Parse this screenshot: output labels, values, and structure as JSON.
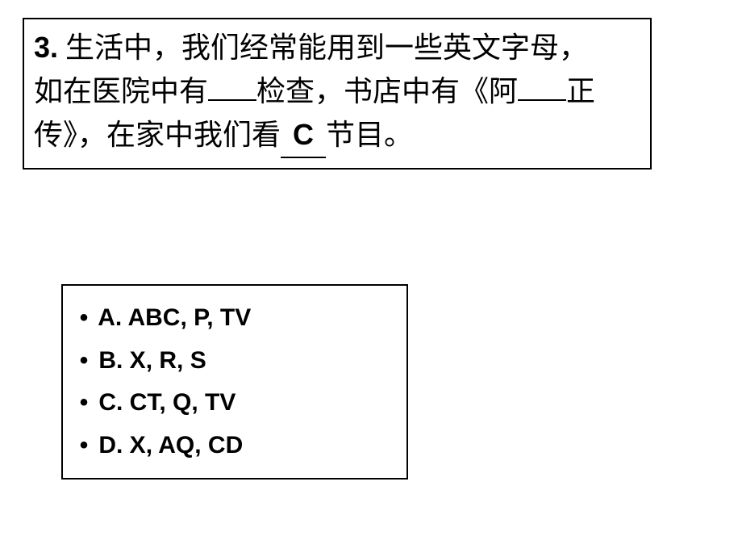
{
  "question": {
    "number": "3.",
    "text_parts": {
      "p1": " 生活中，我们经常能用到一些英文字母，",
      "p2": "如在医院中有",
      "p3": "检查，书店中有《阿",
      "p4": "正传》，在家中我们看",
      "p5": "节目。"
    },
    "filled_answer": "C",
    "blank_widths": {
      "b1": "60px",
      "b2": "60px"
    }
  },
  "options": {
    "a": "A.  ABC, P, TV",
    "b": "B. X, R, S",
    "c": "C.  CT, Q, TV",
    "d": "D.  X, AQ, CD"
  },
  "bullet": "•",
  "center_marker": "",
  "styles": {
    "border_color": "#000000",
    "background_color": "#ffffff",
    "question_fontsize": 36,
    "options_fontsize": 30
  }
}
